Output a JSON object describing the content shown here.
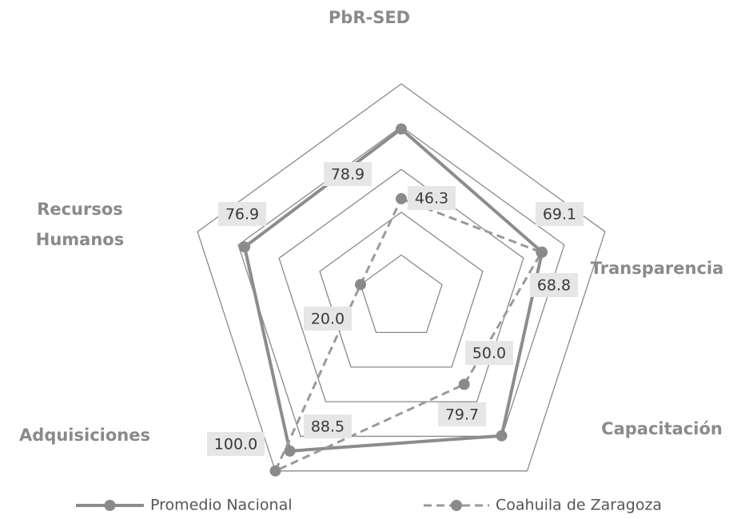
{
  "chart_data": {
    "type": "radar",
    "categories": [
      "PbR-SED",
      "Transparencia",
      "Capacitación",
      "Adquisiciones",
      "Recursos Humanos"
    ],
    "ylim": [
      0,
      100
    ],
    "yticks": [
      20,
      40,
      60,
      80,
      100
    ],
    "grid": true,
    "series": [
      {
        "name": "Promedio Nacional",
        "color": "#8c8c8c",
        "line": "solid",
        "values": [
          78.9,
          69.1,
          79.7,
          88.5,
          76.9
        ],
        "value_labels": [
          "78.9",
          "69.1",
          "79.7",
          "88.5",
          "76.9"
        ]
      },
      {
        "name": "Coahuila de Zaragoza",
        "color": "#9a9a9a",
        "line": "dashed",
        "values": [
          46.3,
          68.8,
          50.0,
          100.0,
          20.0
        ],
        "value_labels": [
          "46.3",
          "68.8",
          "50.0",
          "100.0",
          "20.0"
        ]
      }
    ],
    "legend": "bottom"
  }
}
